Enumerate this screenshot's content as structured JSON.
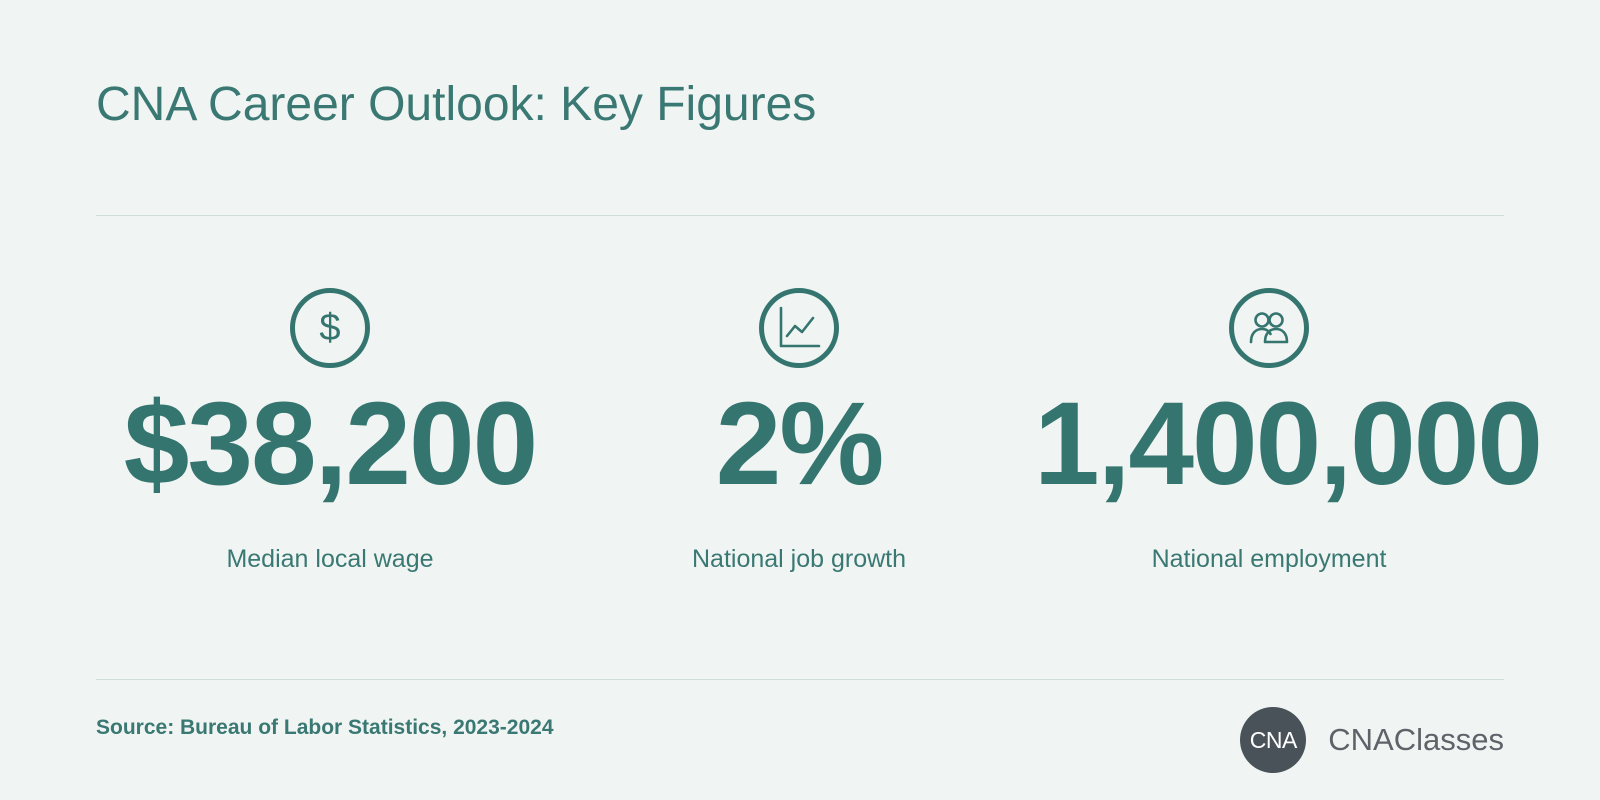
{
  "title": "CNA Career Outlook: Key Figures",
  "theme": {
    "accent": "#357570",
    "background": "#f0f4f2",
    "divider": "#cfdcd9",
    "logo_dark": "#4a5259"
  },
  "stats": [
    {
      "icon": "dollar-icon",
      "icon_glyph": "$",
      "value": "$38,200",
      "label": "Median local wage"
    },
    {
      "icon": "line-chart-icon",
      "value": "2%",
      "label": "National job growth"
    },
    {
      "icon": "people-icon",
      "value": "1,400,000",
      "label": "National employment"
    }
  ],
  "footer": {
    "source": "Source: Bureau of Labor Statistics, 2023-2024"
  },
  "logo": {
    "mark": "CNA",
    "text": "CNAClasses"
  }
}
